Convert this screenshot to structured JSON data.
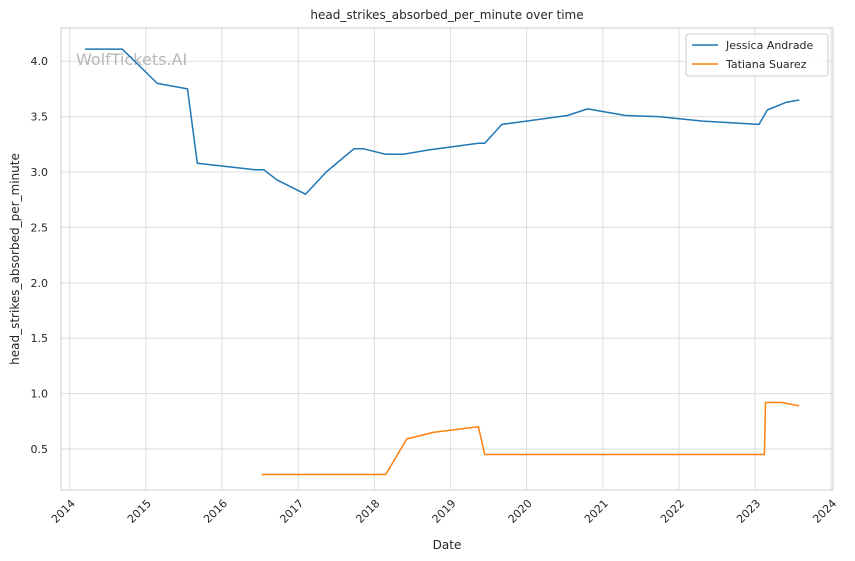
{
  "chart_data": {
    "type": "line",
    "title": "head_strikes_absorbed_per_minute over time",
    "xlabel": "Date",
    "ylabel": "head_strikes_absorbed_per_minute",
    "watermark": "WolfTickets.AI",
    "xlim": [
      "2013-11-20",
      "2024-01-10"
    ],
    "ylim": [
      0.13,
      4.3
    ],
    "x_ticks": [
      "2014",
      "2015",
      "2016",
      "2017",
      "2018",
      "2019",
      "2020",
      "2021",
      "2022",
      "2023",
      "2024"
    ],
    "y_ticks": [
      "0.5",
      "1.0",
      "1.5",
      "2.0",
      "2.5",
      "3.0",
      "3.5",
      "4.0"
    ],
    "grid": true,
    "legend_position": "top-right",
    "series": [
      {
        "name": "Jessica Andrade",
        "color": "#1f77b4",
        "points": [
          {
            "x": "2014-03-15",
            "y": 4.11
          },
          {
            "x": "2014-09-10",
            "y": 4.11
          },
          {
            "x": "2015-02-25",
            "y": 3.8
          },
          {
            "x": "2015-07-20",
            "y": 3.75
          },
          {
            "x": "2015-09-05",
            "y": 3.08
          },
          {
            "x": "2016-06-10",
            "y": 3.02
          },
          {
            "x": "2016-07-20",
            "y": 3.02
          },
          {
            "x": "2016-09-20",
            "y": 2.93
          },
          {
            "x": "2017-02-05",
            "y": 2.8
          },
          {
            "x": "2017-05-15",
            "y": 3.0
          },
          {
            "x": "2017-09-25",
            "y": 3.21
          },
          {
            "x": "2017-11-10",
            "y": 3.21
          },
          {
            "x": "2018-02-25",
            "y": 3.16
          },
          {
            "x": "2018-05-20",
            "y": 3.16
          },
          {
            "x": "2018-09-20",
            "y": 3.2
          },
          {
            "x": "2019-05-15",
            "y": 3.26
          },
          {
            "x": "2019-06-15",
            "y": 3.26
          },
          {
            "x": "2019-09-05",
            "y": 3.43
          },
          {
            "x": "2020-07-15",
            "y": 3.51
          },
          {
            "x": "2020-10-20",
            "y": 3.57
          },
          {
            "x": "2021-04-20",
            "y": 3.51
          },
          {
            "x": "2021-09-25",
            "y": 3.5
          },
          {
            "x": "2022-04-25",
            "y": 3.46
          },
          {
            "x": "2023-01-20",
            "y": 3.43
          },
          {
            "x": "2023-03-01",
            "y": 3.56
          },
          {
            "x": "2023-06-01",
            "y": 3.63
          },
          {
            "x": "2023-08-01",
            "y": 3.65
          }
        ]
      },
      {
        "name": "Tatiana Suarez",
        "color": "#ff7f0e",
        "points": [
          {
            "x": "2016-07-10",
            "y": 0.27
          },
          {
            "x": "2018-02-25",
            "y": 0.27
          },
          {
            "x": "2018-06-05",
            "y": 0.59
          },
          {
            "x": "2018-10-10",
            "y": 0.65
          },
          {
            "x": "2019-05-15",
            "y": 0.7
          },
          {
            "x": "2019-06-15",
            "y": 0.45
          },
          {
            "x": "2023-02-15",
            "y": 0.45
          },
          {
            "x": "2023-02-20",
            "y": 0.92
          },
          {
            "x": "2023-05-10",
            "y": 0.92
          },
          {
            "x": "2023-08-01",
            "y": 0.89
          }
        ]
      }
    ]
  }
}
